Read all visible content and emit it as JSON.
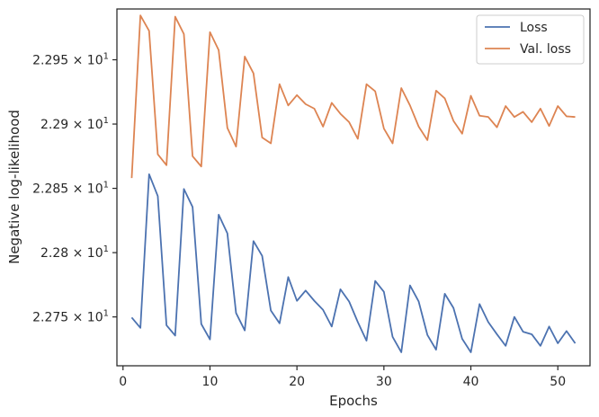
{
  "chart_data": {
    "type": "line",
    "xlabel": "Epochs",
    "ylabel": "Negative log-likelihood",
    "xlim": [
      -0.7,
      53.7
    ],
    "ylim": [
      22.712,
      22.9895
    ],
    "x_ticks": [
      0,
      10,
      20,
      30,
      40,
      50
    ],
    "x_tick_labels": [
      "0",
      "10",
      "20",
      "30",
      "40",
      "50"
    ],
    "y_ticks": [
      22.75,
      22.8,
      22.85,
      22.9,
      22.95
    ],
    "y_tick_mantissas": [
      "2.275",
      "2.28",
      "2.285",
      "2.29",
      "2.295"
    ],
    "y_tick_base": "10",
    "y_tick_exponent": "1",
    "y_tick_mult": "×",
    "legend_position": "top-right",
    "x": [
      1,
      2,
      3,
      4,
      5,
      6,
      7,
      8,
      9,
      10,
      11,
      12,
      13,
      14,
      15,
      16,
      17,
      18,
      19,
      20,
      21,
      22,
      23,
      24,
      25,
      26,
      27,
      28,
      29,
      30,
      31,
      32,
      33,
      34,
      35,
      36,
      37,
      38,
      39,
      40,
      41,
      42,
      43,
      44,
      45,
      46,
      47,
      48,
      49,
      50,
      51,
      52
    ],
    "series": [
      {
        "name": "Loss",
        "color": "#4c72b0",
        "values": [
          22.7495,
          22.7415,
          22.861,
          22.844,
          22.7435,
          22.7355,
          22.8495,
          22.8355,
          22.7445,
          22.7325,
          22.8295,
          22.815,
          22.753,
          22.7395,
          22.809,
          22.7975,
          22.755,
          22.745,
          22.781,
          22.7625,
          22.7705,
          22.7625,
          22.7555,
          22.7425,
          22.7715,
          22.762,
          22.746,
          22.7315,
          22.778,
          22.7695,
          22.7345,
          22.7225,
          22.7745,
          22.762,
          22.736,
          22.7245,
          22.768,
          22.757,
          22.733,
          22.7225,
          22.76,
          22.746,
          22.7365,
          22.7275,
          22.75,
          22.7385,
          22.7365,
          22.7275,
          22.7425,
          22.7295,
          22.739,
          22.7295
        ]
      },
      {
        "name": "Val. loss",
        "color": "#dd8452",
        "values": [
          22.858,
          22.9845,
          22.9725,
          22.8765,
          22.868,
          22.9835,
          22.97,
          22.875,
          22.867,
          22.9715,
          22.9575,
          22.897,
          22.8825,
          22.9525,
          22.9395,
          22.8895,
          22.885,
          22.931,
          22.9145,
          22.9225,
          22.9155,
          22.912,
          22.898,
          22.9165,
          22.908,
          22.9015,
          22.8885,
          22.931,
          22.9255,
          22.8965,
          22.885,
          22.928,
          22.9145,
          22.898,
          22.8875,
          22.926,
          22.92,
          22.9025,
          22.8925,
          22.922,
          22.9065,
          22.9055,
          22.8975,
          22.914,
          22.9055,
          22.9095,
          22.9015,
          22.912,
          22.8985,
          22.914,
          22.906,
          22.9055
        ]
      }
    ],
    "colors": {
      "axis": "#262626",
      "background": "#ffffff",
      "legend_border": "#cccccc"
    }
  }
}
